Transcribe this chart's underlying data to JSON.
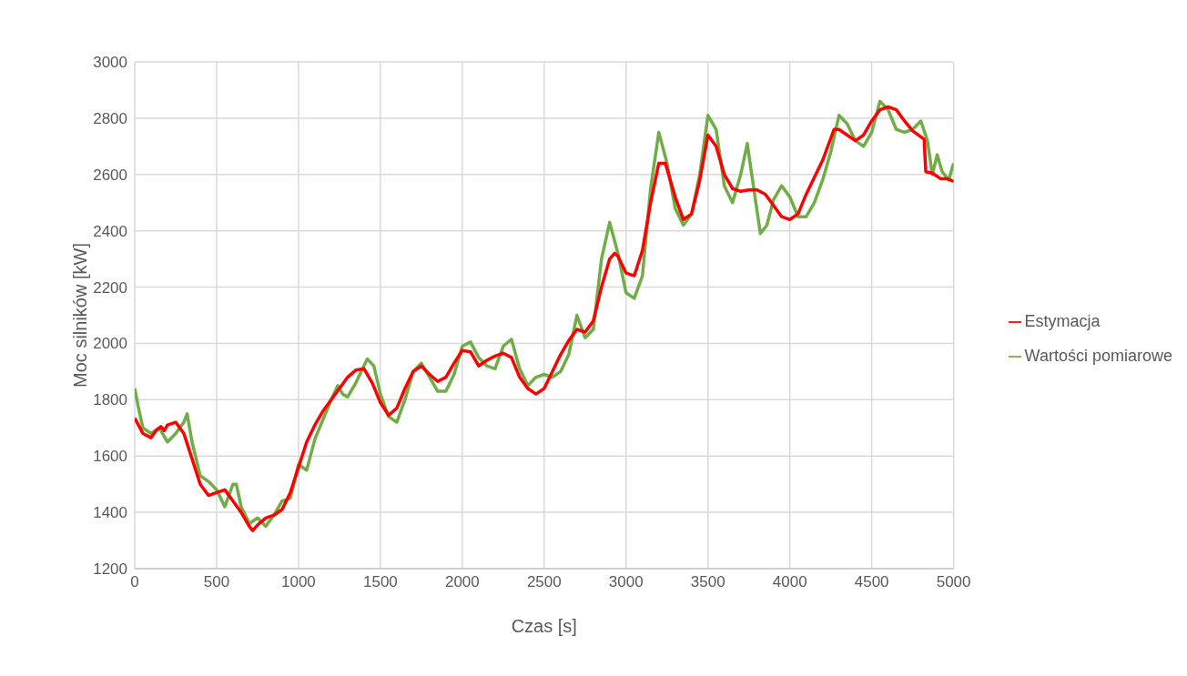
{
  "chart_data": {
    "type": "line",
    "xlabel": "Czas [s]",
    "ylabel": "Moc silników [kW]",
    "xlim": [
      0,
      5000
    ],
    "xticks": [
      0,
      500,
      1000,
      1500,
      2000,
      2500,
      3000,
      3500,
      4000,
      4500,
      5000
    ],
    "ylim": [
      1200,
      3000
    ],
    "yticks": [
      1200,
      1400,
      1600,
      1800,
      2000,
      2200,
      2400,
      2600,
      2800,
      3000
    ],
    "grid": true,
    "legend": "right",
    "marker": "none",
    "line_style": "solid",
    "series": [
      {
        "name": "Wartości pomiarowe",
        "color": "#70ad47",
        "x": [
          0,
          20,
          50,
          100,
          150,
          200,
          250,
          300,
          320,
          350,
          400,
          450,
          500,
          550,
          600,
          620,
          650,
          700,
          750,
          800,
          850,
          900,
          950,
          1000,
          1050,
          1100,
          1200,
          1240,
          1270,
          1300,
          1350,
          1420,
          1460,
          1500,
          1550,
          1600,
          1650,
          1700,
          1750,
          1800,
          1850,
          1900,
          1950,
          2000,
          2050,
          2100,
          2150,
          2200,
          2250,
          2300,
          2350,
          2400,
          2450,
          2500,
          2550,
          2600,
          2650,
          2700,
          2750,
          2800,
          2850,
          2900,
          2950,
          3000,
          3050,
          3100,
          3150,
          3200,
          3250,
          3300,
          3350,
          3400,
          3450,
          3500,
          3550,
          3600,
          3650,
          3700,
          3740,
          3780,
          3820,
          3860,
          3900,
          3950,
          4000,
          4050,
          4100,
          4150,
          4200,
          4250,
          4300,
          4350,
          4400,
          4450,
          4500,
          4550,
          4600,
          4650,
          4700,
          4750,
          4800,
          4840,
          4870,
          4900,
          4930,
          4970,
          5000
        ],
        "values": [
          1840,
          1780,
          1700,
          1680,
          1700,
          1650,
          1680,
          1720,
          1750,
          1650,
          1530,
          1510,
          1480,
          1420,
          1500,
          1500,
          1420,
          1360,
          1380,
          1350,
          1390,
          1440,
          1450,
          1570,
          1550,
          1660,
          1800,
          1850,
          1820,
          1810,
          1860,
          1945,
          1920,
          1820,
          1740,
          1720,
          1800,
          1900,
          1930,
          1880,
          1830,
          1830,
          1890,
          1990,
          2005,
          1950,
          1920,
          1910,
          1990,
          2015,
          1910,
          1850,
          1880,
          1890,
          1880,
          1900,
          1960,
          2100,
          2020,
          2050,
          2300,
          2430,
          2320,
          2180,
          2160,
          2240,
          2550,
          2750,
          2640,
          2480,
          2420,
          2460,
          2600,
          2810,
          2760,
          2560,
          2500,
          2600,
          2710,
          2550,
          2390,
          2420,
          2510,
          2560,
          2520,
          2450,
          2450,
          2500,
          2580,
          2680,
          2810,
          2780,
          2720,
          2700,
          2750,
          2860,
          2830,
          2760,
          2750,
          2760,
          2790,
          2720,
          2600,
          2670,
          2610,
          2580,
          2640
        ]
      },
      {
        "name": "Estymacja",
        "color": "#ff0000",
        "x": [
          0,
          50,
          100,
          130,
          160,
          180,
          200,
          250,
          300,
          350,
          400,
          450,
          500,
          550,
          600,
          650,
          700,
          720,
          750,
          800,
          850,
          900,
          950,
          1000,
          1050,
          1100,
          1150,
          1200,
          1250,
          1300,
          1350,
          1400,
          1450,
          1500,
          1550,
          1600,
          1650,
          1700,
          1750,
          1800,
          1850,
          1900,
          1950,
          2000,
          2050,
          2100,
          2150,
          2200,
          2250,
          2300,
          2350,
          2400,
          2450,
          2500,
          2550,
          2600,
          2650,
          2700,
          2750,
          2800,
          2850,
          2900,
          2930,
          2950,
          3000,
          3050,
          3100,
          3150,
          3200,
          3240,
          3300,
          3350,
          3400,
          3450,
          3500,
          3550,
          3600,
          3650,
          3700,
          3750,
          3800,
          3850,
          3900,
          3950,
          4000,
          4050,
          4100,
          4200,
          4270,
          4300,
          4350,
          4400,
          4450,
          4500,
          4550,
          4600,
          4650,
          4700,
          4750,
          4820,
          4830,
          4870,
          4920,
          4960,
          5000
        ],
        "values": [
          1735,
          1680,
          1665,
          1690,
          1705,
          1690,
          1710,
          1720,
          1680,
          1590,
          1500,
          1460,
          1470,
          1480,
          1440,
          1400,
          1350,
          1335,
          1355,
          1380,
          1390,
          1410,
          1470,
          1560,
          1650,
          1710,
          1760,
          1800,
          1840,
          1880,
          1905,
          1910,
          1860,
          1790,
          1745,
          1770,
          1840,
          1900,
          1920,
          1890,
          1865,
          1880,
          1930,
          1975,
          1970,
          1920,
          1940,
          1955,
          1965,
          1950,
          1880,
          1840,
          1820,
          1840,
          1900,
          1960,
          2010,
          2050,
          2040,
          2080,
          2200,
          2300,
          2320,
          2310,
          2250,
          2240,
          2330,
          2500,
          2640,
          2640,
          2520,
          2440,
          2460,
          2580,
          2740,
          2700,
          2600,
          2550,
          2540,
          2545,
          2545,
          2530,
          2490,
          2450,
          2440,
          2460,
          2530,
          2650,
          2760,
          2760,
          2740,
          2720,
          2740,
          2790,
          2830,
          2840,
          2830,
          2790,
          2755,
          2725,
          2610,
          2605,
          2585,
          2585,
          2575
        ]
      }
    ]
  }
}
